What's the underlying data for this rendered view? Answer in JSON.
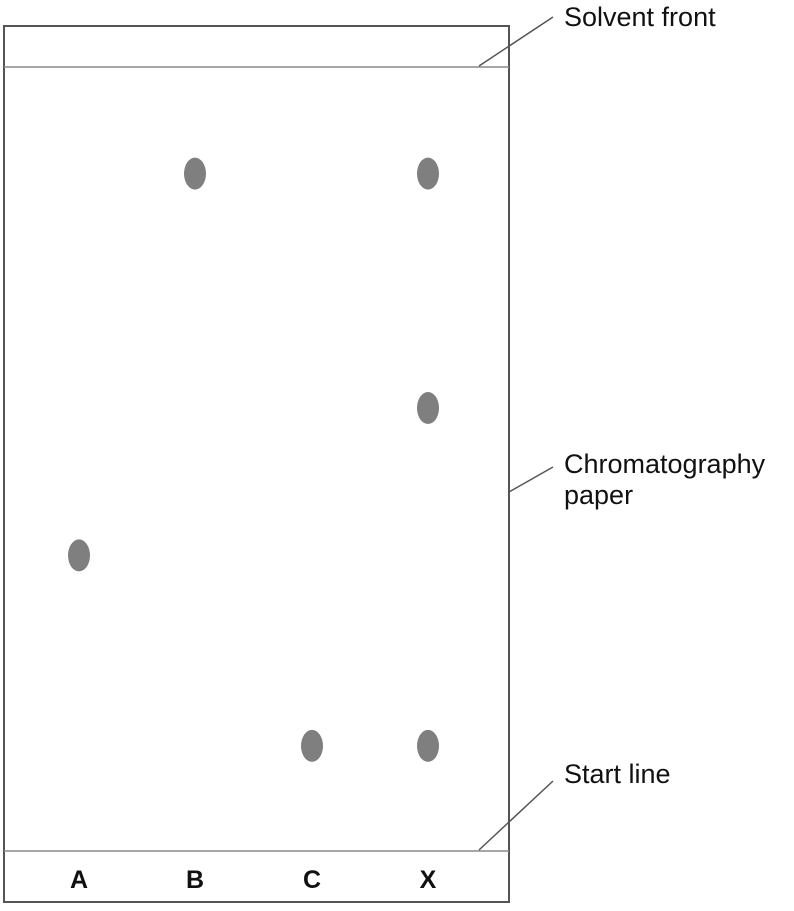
{
  "labels": {
    "solvent_front": "Solvent front",
    "paper_line1": "Chromatography",
    "paper_line2": "paper",
    "start_line": "Start line"
  },
  "lanes": [
    "A",
    "B",
    "C",
    "X"
  ],
  "spots": [
    {
      "lane": "A",
      "level": 0.377
    },
    {
      "lane": "B",
      "level": 0.864
    },
    {
      "lane": "C",
      "level": 0.134
    },
    {
      "lane": "X",
      "level": 0.864
    },
    {
      "lane": "X",
      "level": 0.565
    },
    {
      "lane": "X",
      "level": 0.134
    }
  ],
  "colors": {
    "spot": "#7f7f7f",
    "border": "#555555",
    "line": "#888888",
    "text": "#111111"
  }
}
